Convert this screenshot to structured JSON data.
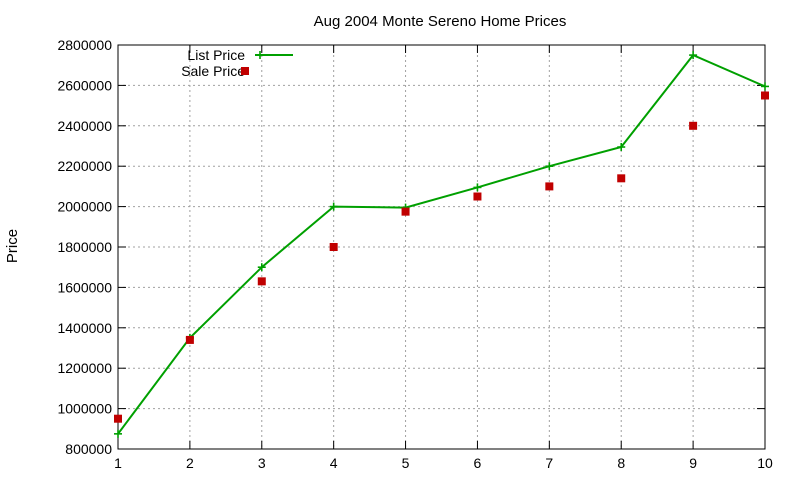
{
  "chart_data": {
    "type": "line",
    "title": "Aug 2004 Monte Sereno Home Prices",
    "xlabel": "",
    "ylabel": "Price",
    "xlim": [
      1,
      10
    ],
    "ylim": [
      800000,
      2800000
    ],
    "xticks": [
      "1",
      "2",
      "3",
      "4",
      "5",
      "6",
      "7",
      "8",
      "9",
      "10"
    ],
    "yticks": [
      "800000",
      "1000000",
      "1200000",
      "1400000",
      "1600000",
      "1800000",
      "2000000",
      "2200000",
      "2400000",
      "2600000",
      "2800000"
    ],
    "grid": true,
    "legend_position": "top-left",
    "x": [
      1,
      2,
      3,
      4,
      5,
      6,
      7,
      8,
      9,
      10
    ],
    "series": [
      {
        "name": "List Price",
        "style": "linespoints",
        "color": "#00a000",
        "values": [
          875000,
          1350000,
          1700000,
          2000000,
          1995000,
          2095000,
          2200000,
          2295000,
          2750000,
          2595000
        ]
      },
      {
        "name": "Sale Price",
        "style": "points",
        "color": "#c00000",
        "values": [
          950000,
          1340000,
          1630000,
          1800000,
          1975000,
          2050000,
          2100000,
          2140000,
          2400000,
          2550000
        ]
      }
    ]
  }
}
